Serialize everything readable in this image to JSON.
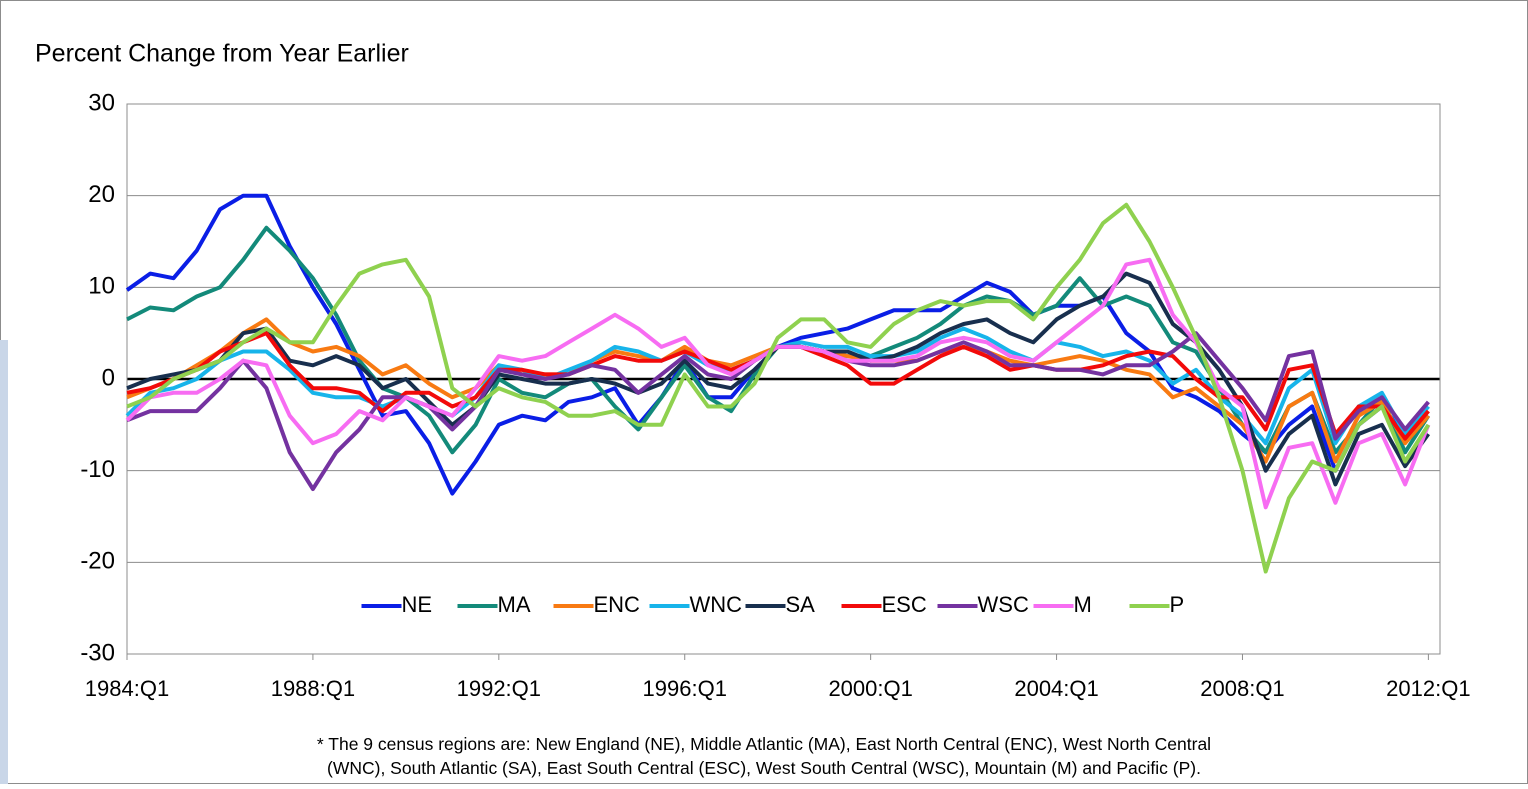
{
  "chart_data": {
    "type": "line",
    "title": "Percent Change from Year Earlier",
    "note": "* The 9 census regions are: New England (NE), Middle Atlantic (MA), East North Central (ENC), West North Central (WNC), South Atlantic (SA), East South Central (ESC), West South Central (WSC), Mountain (M) and Pacific (P).",
    "x": [
      1984,
      1984.5,
      1985,
      1985.5,
      1986,
      1986.5,
      1987,
      1987.5,
      1988,
      1988.5,
      1989,
      1989.5,
      1990,
      1990.5,
      1991,
      1991.5,
      1992,
      1992.5,
      1993,
      1993.5,
      1994,
      1994.5,
      1995,
      1995.5,
      1996,
      1996.5,
      1997,
      1997.5,
      1998,
      1998.5,
      1999,
      1999.5,
      2000,
      2000.5,
      2001,
      2001.5,
      2002,
      2002.5,
      2003,
      2003.5,
      2004,
      2004.5,
      2005,
      2005.5,
      2006,
      2006.5,
      2007,
      2007.5,
      2008,
      2008.5,
      2009,
      2009.5,
      2010,
      2010.5,
      2011,
      2011.5,
      2012
    ],
    "xlim": [
      1984,
      2012.25
    ],
    "xticks": [
      {
        "value": 1984,
        "label": "1984:Q1"
      },
      {
        "value": 1988,
        "label": "1988:Q1"
      },
      {
        "value": 1992,
        "label": "1992:Q1"
      },
      {
        "value": 1996,
        "label": "1996:Q1"
      },
      {
        "value": 2000,
        "label": "2000:Q1"
      },
      {
        "value": 2004,
        "label": "2004:Q1"
      },
      {
        "value": 2008,
        "label": "2008:Q1"
      },
      {
        "value": 2012,
        "label": "2012:Q1"
      }
    ],
    "ylim": [
      -30,
      30
    ],
    "yticks": [
      -30,
      -20,
      -10,
      0,
      10,
      20,
      30
    ],
    "grid": true,
    "legend": "lower center",
    "series": [
      {
        "name": "NE",
        "color": "#0a1ee6",
        "values": [
          9.7,
          11.5,
          11,
          14,
          18.5,
          20,
          20,
          14.5,
          10,
          6,
          1,
          -4,
          -3.5,
          -7,
          -12.5,
          -9,
          -5,
          -4,
          -4.5,
          -2.5,
          -2,
          -1,
          -5,
          -2,
          2,
          -2,
          -2,
          1,
          3.5,
          4.5,
          5,
          5.5,
          6.5,
          7.5,
          7.5,
          7.5,
          9,
          10.5,
          9.5,
          7,
          8,
          8,
          9,
          5,
          3,
          -1,
          -2,
          -3.5,
          -6,
          -8,
          -5,
          -3,
          -10,
          -5,
          -3,
          -6,
          -4
        ]
      },
      {
        "name": "MA",
        "color": "#138a7a",
        "values": [
          6.5,
          7.8,
          7.5,
          9,
          10,
          13,
          16.5,
          14,
          11,
          7,
          2,
          -1,
          -2,
          -4,
          -8,
          -5,
          0,
          -1.5,
          -2,
          -0.5,
          0,
          -3,
          -5.5,
          -2,
          1.5,
          -2,
          -3.5,
          0.5,
          3.5,
          3.5,
          3,
          2.5,
          2.5,
          3.5,
          4.5,
          6,
          8,
          9,
          8.5,
          7,
          8,
          11,
          8,
          9,
          8,
          4,
          3,
          -1,
          -5,
          -8,
          -3,
          -1.5,
          -8,
          -5,
          -2,
          -8,
          -4
        ]
      },
      {
        "name": "ENC",
        "color": "#f87a12",
        "values": [
          -2,
          -1,
          0,
          1.5,
          3,
          5,
          6.5,
          4,
          3,
          3.5,
          2.5,
          0.5,
          1.5,
          -0.5,
          -2,
          -1,
          1.5,
          0.5,
          0.5,
          0.5,
          2,
          3,
          2.5,
          2,
          3.5,
          2,
          1.5,
          2.5,
          3.5,
          3.5,
          3,
          2.5,
          2,
          2,
          2,
          3,
          3.5,
          3,
          2,
          1.5,
          2,
          2.5,
          2,
          1,
          0.5,
          -2,
          -1,
          -3,
          -5,
          -9,
          -3,
          -1.5,
          -9,
          -4,
          -2.5,
          -7,
          -4
        ]
      },
      {
        "name": "WNC",
        "color": "#17b4ea",
        "values": [
          -4,
          -1.5,
          -1,
          0,
          2,
          3,
          3,
          1,
          -1.5,
          -2,
          -2,
          -3,
          -2,
          -3,
          -4,
          -2,
          1.5,
          1,
          0,
          1,
          2,
          3.5,
          3,
          2,
          3,
          1.5,
          1,
          2,
          3.5,
          4,
          3.5,
          3.5,
          2.5,
          2.5,
          3,
          4.5,
          5.5,
          4.5,
          3,
          2,
          4,
          3.5,
          2.5,
          3,
          2,
          -0.5,
          1,
          -2,
          -4,
          -7,
          -1,
          1,
          -7,
          -3,
          -1.5,
          -6,
          -3
        ]
      },
      {
        "name": "SA",
        "color": "#182f4e",
        "values": [
          -1,
          0,
          0.5,
          1,
          2,
          5,
          5.5,
          2,
          1.5,
          2.5,
          1.5,
          -1,
          0,
          -2.5,
          -5,
          -3,
          0.5,
          0,
          -0.5,
          -0.5,
          0,
          -0.5,
          -1.5,
          -0.5,
          2,
          -0.5,
          -1,
          1,
          3.5,
          3.5,
          3,
          3,
          2,
          2.5,
          3.5,
          5,
          6,
          6.5,
          5,
          4,
          6.5,
          8,
          9,
          11.5,
          10.5,
          6,
          4,
          1,
          -3,
          -10,
          -6,
          -4,
          -11.5,
          -6,
          -5,
          -9.5,
          -6
        ]
      },
      {
        "name": "ESC",
        "color": "#f20a0a",
        "values": [
          -1.5,
          -1,
          0,
          1,
          3,
          4,
          5,
          1.5,
          -1,
          -1,
          -1.5,
          -3.5,
          -1.5,
          -1.5,
          -3,
          -2,
          1,
          1,
          0.5,
          0.5,
          1.5,
          2.5,
          2,
          2,
          3,
          2,
          1,
          2,
          3.5,
          3.5,
          2.5,
          1.5,
          -0.5,
          -0.5,
          1,
          2.5,
          3.5,
          2.5,
          1,
          1.5,
          1,
          1,
          1.5,
          2.5,
          3,
          2.5,
          0,
          -2,
          -2,
          -5.5,
          1,
          1.5,
          -6,
          -3,
          -3,
          -6.5,
          -3.5
        ]
      },
      {
        "name": "WSC",
        "color": "#7432a0",
        "values": [
          -4.5,
          -3.5,
          -3.5,
          -3.5,
          -1,
          2,
          -1,
          -8,
          -12,
          -8,
          -5.5,
          -2,
          -2,
          -3,
          -5.5,
          -3,
          1,
          0.5,
          0,
          0.5,
          1.5,
          1,
          -1.5,
          0.5,
          2.5,
          0.5,
          0,
          2,
          3.5,
          3.5,
          3,
          2,
          1.5,
          1.5,
          2,
          3,
          4,
          3,
          1.5,
          1.5,
          1,
          1,
          0.5,
          1.5,
          1.5,
          3,
          5,
          2,
          -1,
          -4.5,
          2.5,
          3,
          -6.5,
          -3.5,
          -2,
          -5.5,
          -2.5
        ]
      },
      {
        "name": "M",
        "color": "#f76cf2",
        "values": [
          -4.5,
          -2,
          -1.5,
          -1.5,
          0,
          2,
          1.5,
          -4,
          -7,
          -6,
          -3.5,
          -4.5,
          -2,
          -3,
          -4,
          -1,
          2.5,
          2,
          2.5,
          4,
          5.5,
          7,
          5.5,
          3.5,
          4.5,
          1.5,
          0.5,
          2,
          3.5,
          3.5,
          3,
          2,
          2,
          2,
          2.5,
          4,
          4.5,
          4,
          2.5,
          2,
          4,
          6,
          8,
          12.5,
          13,
          7,
          4,
          -1,
          -3,
          -14,
          -7.5,
          -7,
          -13.5,
          -7,
          -6,
          -11.5,
          -5
        ]
      },
      {
        "name": "P",
        "color": "#8fd14f",
        "values": [
          -3,
          -2,
          0,
          1,
          2,
          4,
          5.5,
          4,
          4,
          8,
          11.5,
          12.5,
          13,
          9,
          -1,
          -3,
          -1,
          -2,
          -2.5,
          -4,
          -4,
          -3.5,
          -5,
          -5,
          0.5,
          -3,
          -3,
          -0.5,
          4.5,
          6.5,
          6.5,
          4,
          3.5,
          6,
          7.5,
          8.5,
          8,
          8.5,
          8.5,
          6.5,
          10,
          13,
          17,
          19,
          15,
          10,
          4.5,
          -2,
          -10,
          -21,
          -13,
          -9,
          -10,
          -5,
          -3,
          -9,
          -5
        ]
      }
    ]
  }
}
